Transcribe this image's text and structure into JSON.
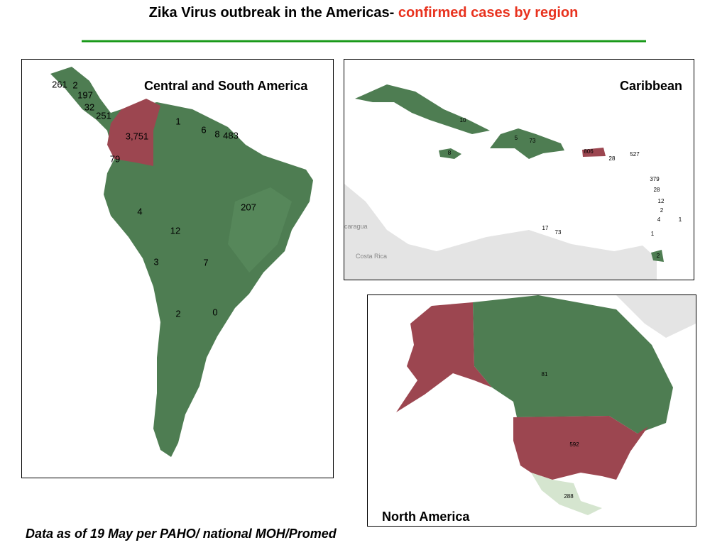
{
  "title": {
    "main": "Zika Virus outbreak in the Americas-",
    "highlight": "confirmed cases by region"
  },
  "panels": [
    {
      "heading": "Central and South America",
      "labels": [
        "261",
        "2",
        "197",
        "32",
        "251",
        "3,751",
        "1",
        "6",
        "8",
        "483",
        "79",
        "207",
        "4",
        "12",
        "3",
        "7",
        "2",
        "0"
      ]
    },
    {
      "heading": "Caribbean",
      "labels": [
        "10",
        "5",
        "73",
        "8",
        "806",
        "28",
        "527",
        "379",
        "28",
        "12",
        "2",
        "4",
        "1",
        "17",
        "73",
        "1",
        "2"
      ],
      "basemap_labels": [
        "caragua",
        "Costa Rica"
      ]
    },
    {
      "heading": "North America",
      "labels": [
        "81",
        "592",
        "288"
      ]
    }
  ],
  "footnote": "Data as of 19  May  per PAHO/ national MOH/Promed"
}
